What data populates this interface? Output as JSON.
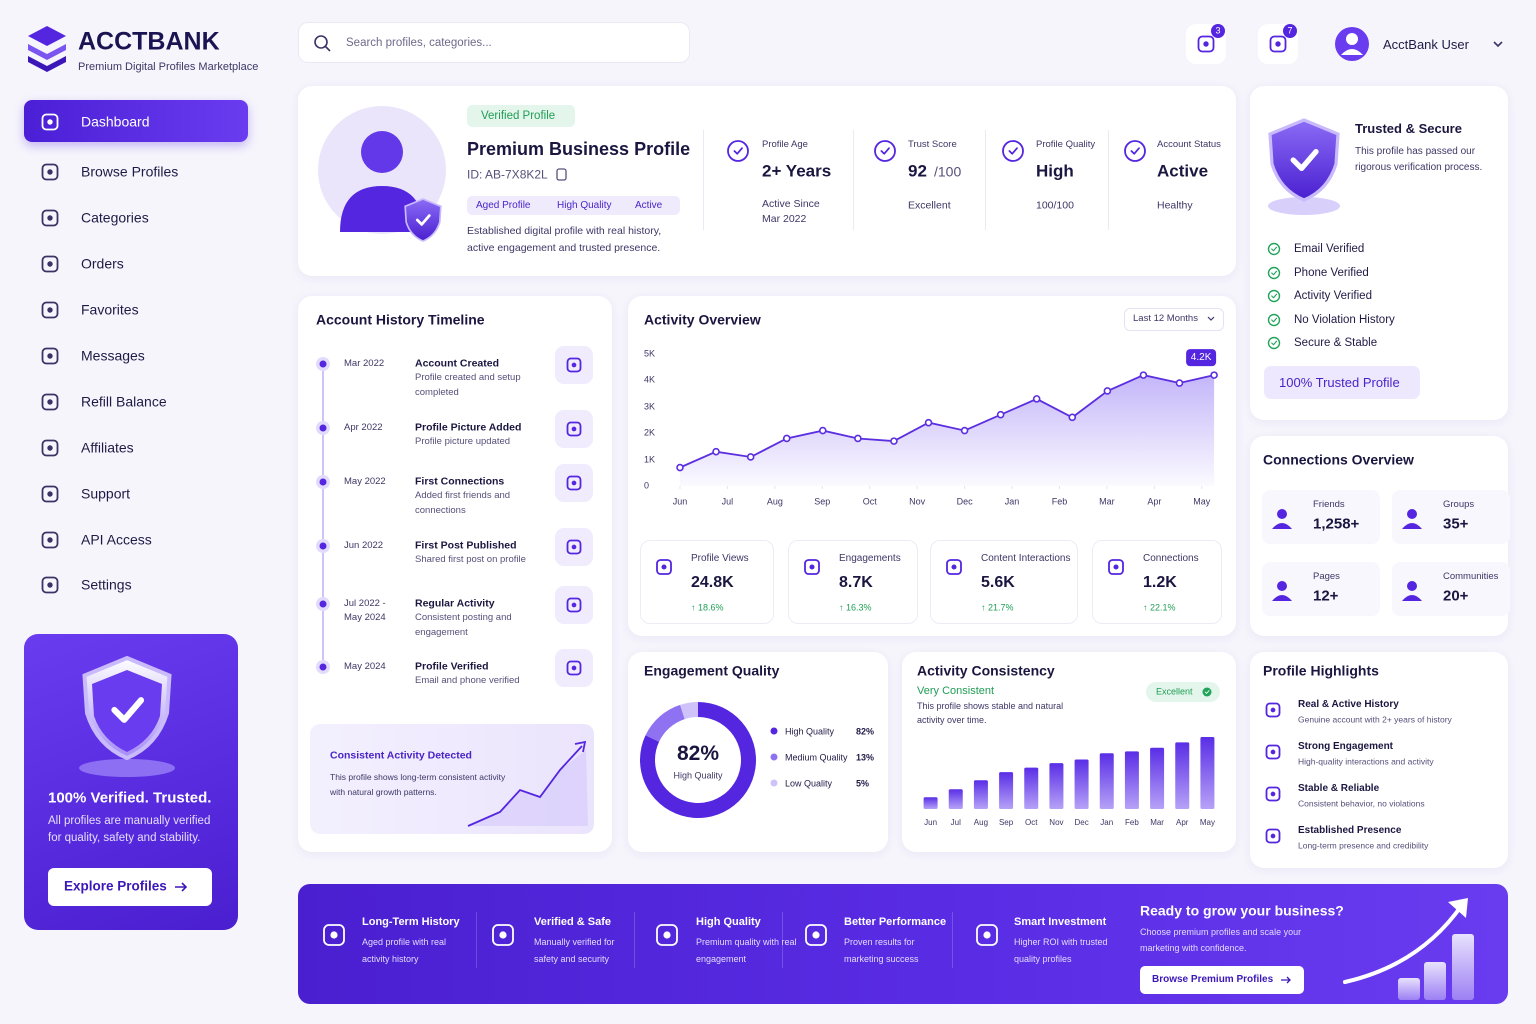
{
  "brand": {
    "name": "ACCTBANK",
    "tagline": "Premium Digital Profiles Marketplace"
  },
  "nav": [
    "Dashboard",
    "Browse Profiles",
    "Categories",
    "Orders",
    "Favorites",
    "Messages",
    "Refill Balance",
    "Affiliates",
    "Support",
    "API Access",
    "Settings"
  ],
  "promo": {
    "title": "100% Verified. Trusted.",
    "text": "All profiles are manually verified for quality, safety and stability.",
    "button": "Explore Profiles"
  },
  "search": {
    "placeholder": "Search profiles, categories..."
  },
  "header": {
    "cart_count": 3,
    "notification_count": 7,
    "user": "AcctBank User"
  },
  "profile": {
    "badge": "Verified Profile",
    "title": "Premium Business Profile",
    "id": "ID: AB-7X8K2L",
    "tags": [
      "Aged Profile",
      "High Quality",
      "Active"
    ],
    "description": "Established digital profile with real history, active engagement and trusted presence.",
    "stats": [
      {
        "label": "Profile Age",
        "value": "2+ Years",
        "note": "Active Since Mar 2022"
      },
      {
        "label": "Trust Score",
        "value": 92,
        "suffix": "/100",
        "note": "Excellent"
      },
      {
        "label": "Profile Quality",
        "value": "High",
        "note": "100/100"
      },
      {
        "label": "Account Status",
        "value": "Active",
        "note": "Healthy"
      }
    ]
  },
  "trust": {
    "title": "Trusted & Secure",
    "text": "This profile has passed our rigorous verification process.",
    "checks": [
      "Email Verified",
      "Phone Verified",
      "Activity Verified",
      "No Violation History",
      "Secure & Stable"
    ],
    "button": "100% Trusted Profile"
  },
  "timeline": {
    "title": "Account History Timeline",
    "events": [
      {
        "date": "Mar 2022",
        "title": "Account Created",
        "text": "Profile created and setup completed"
      },
      {
        "date": "Apr 2022",
        "title": "Profile Picture Added",
        "text": "Profile picture updated"
      },
      {
        "date": "May 2022",
        "title": "First Connections",
        "text": "Added first friends and connections"
      },
      {
        "date": "Jun 2022",
        "title": "First Post Published",
        "text": "Shared first post on profile"
      },
      {
        "date": "Jul 2022 - May 2024",
        "title": "Regular Activity",
        "text": "Consistent posting and engagement"
      },
      {
        "date": "May 2024",
        "title": "Profile Verified",
        "text": "Email and phone verified"
      }
    ],
    "callout": {
      "title": "Consistent Activity Detected",
      "text": "This profile shows long-term consistent activity with natural growth patterns."
    }
  },
  "activity": {
    "title": "Activity Overview",
    "period": "Last 12 Months",
    "chart": {
      "type": "line",
      "color": "#5b2ee0",
      "x": [
        0,
        0.76,
        1.49,
        2.25,
        3.01,
        3.75,
        4.51,
        5.24,
        6.0,
        6.76,
        7.52,
        8.27,
        9.01,
        9.77,
        10.53,
        11.26
      ],
      "values": [
        700,
        1300,
        1100,
        1800,
        2100,
        1800,
        1700,
        2400,
        2100,
        2700,
        3300,
        2600,
        3600,
        4200,
        3900,
        4200
      ],
      "value_labels": [
        null,
        null,
        null,
        null,
        null,
        null,
        null,
        null,
        null,
        null,
        null,
        null,
        null,
        null,
        null,
        "4.2K"
      ],
      "xlim": [
        0,
        11.3
      ],
      "xticks": [
        {
          "value": 0,
          "label": "Jun"
        },
        {
          "value": 1,
          "label": "Jul"
        },
        {
          "value": 2,
          "label": "Aug"
        },
        {
          "value": 3,
          "label": "Sep"
        },
        {
          "value": 4,
          "label": "Oct"
        },
        {
          "value": 5,
          "label": "Nov"
        },
        {
          "value": 6,
          "label": "Dec"
        },
        {
          "value": 7,
          "label": "Jan"
        },
        {
          "value": 8,
          "label": "Feb"
        },
        {
          "value": 9,
          "label": "Mar"
        },
        {
          "value": 10,
          "label": "Apr"
        },
        {
          "value": 11,
          "label": "May"
        }
      ],
      "ylim": [
        0,
        5000
      ],
      "yticks": [
        0,
        {
          "value": 1000,
          "label": "1K"
        },
        {
          "value": 2000,
          "label": "2K"
        },
        {
          "value": 3000,
          "label": "3K"
        },
        {
          "value": 4000,
          "label": "4K"
        },
        {
          "value": 5000,
          "label": "5K"
        }
      ]
    },
    "metrics": [
      {
        "label": "Profile Views",
        "value": "24.8K",
        "change": "↑ 18.6%"
      },
      {
        "label": "Engagements",
        "value": "8.7K",
        "change": "↑ 16.3%"
      },
      {
        "label": "Content Interactions",
        "value": "5.6K",
        "change": "↑ 21.7%"
      },
      {
        "label": "Connections",
        "value": "1.2K",
        "change": "↑ 22.1%"
      }
    ]
  },
  "engagement": {
    "title": "Engagement Quality",
    "chart": {
      "type": "pie",
      "center_value": "82%",
      "center_label": "High Quality",
      "categories": [
        "High Quality",
        "Medium Quality",
        "Low Quality"
      ],
      "values": [
        82,
        13,
        5
      ],
      "value_labels": [
        "82%",
        "13%",
        "5%"
      ],
      "colors": [
        "#5426e0",
        "#8f72f2",
        "#cfc2fa"
      ]
    }
  },
  "consistency": {
    "title": "Activity Consistency",
    "status": "Very Consistent",
    "text": "This profile shows stable and natural activity over time.",
    "badge": "Excellent",
    "chart": {
      "type": "bar",
      "color": "#6a3ef0",
      "categories": [
        "Jun",
        "Jul",
        "Aug",
        "Sep",
        "Oct",
        "Nov",
        "Dec",
        "Jan",
        "Feb",
        "Mar",
        "Apr",
        "May"
      ],
      "values": [
        13,
        22,
        32,
        41,
        46,
        51,
        55,
        62,
        64,
        68,
        74,
        80
      ],
      "ylim": [
        0,
        90
      ]
    }
  },
  "connections": {
    "title": "Connections Overview",
    "items": [
      {
        "label": "Friends",
        "value": "1,258+"
      },
      {
        "label": "Groups",
        "value": "35+"
      },
      {
        "label": "Pages",
        "value": "12+"
      },
      {
        "label": "Communities",
        "value": "20+"
      }
    ]
  },
  "highlights": {
    "title": "Profile Highlights",
    "items": [
      {
        "title": "Real & Active History",
        "text": "Genuine account with 2+ years of history"
      },
      {
        "title": "Strong Engagement",
        "text": "High-quality interactions and activity"
      },
      {
        "title": "Stable & Reliable",
        "text": "Consistent behavior, no violations"
      },
      {
        "title": "Established Presence",
        "text": "Long-term presence and credibility"
      }
    ]
  },
  "banner": {
    "features": [
      {
        "title": "Long-Term History",
        "text": "Aged profile with real activity history"
      },
      {
        "title": "Verified & Safe",
        "text": "Manually verified for safety and security"
      },
      {
        "title": "High Quality",
        "text": "Premium quality with real engagement"
      },
      {
        "title": "Better Performance",
        "text": "Proven results for marketing success"
      },
      {
        "title": "Smart Investment",
        "text": "Higher ROI with trusted quality profiles"
      }
    ],
    "cta": {
      "title": "Ready to grow your business?",
      "text": "Choose premium profiles and scale your marketing with confidence.",
      "button": "Browse Premium Profiles"
    }
  }
}
